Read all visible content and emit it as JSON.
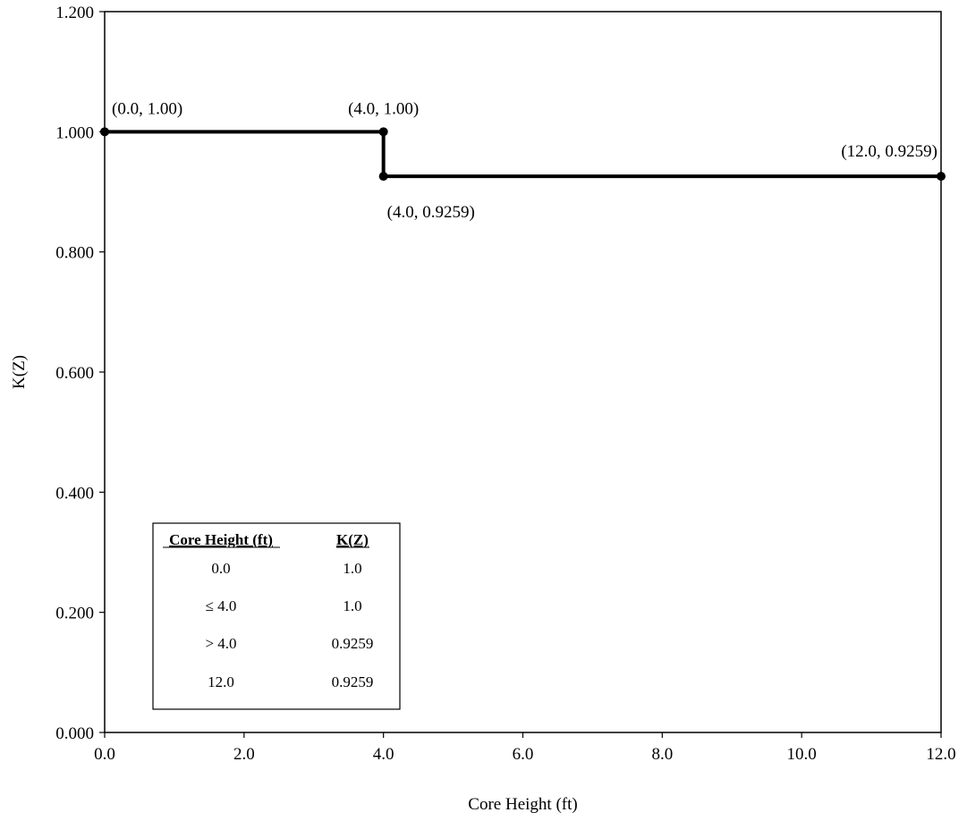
{
  "chart_data": {
    "type": "line",
    "title": "",
    "xlabel": "Core Height (ft)",
    "ylabel": "K(Z)",
    "xlim": [
      0,
      12
    ],
    "ylim": [
      0,
      1.2
    ],
    "grid": false,
    "x_ticks": [
      "0.0",
      "2.0",
      "4.0",
      "6.0",
      "8.0",
      "10.0",
      "12.0"
    ],
    "y_ticks": [
      "0.000",
      "0.200",
      "0.400",
      "0.600",
      "0.800",
      "1.000",
      "1.200"
    ],
    "series": [
      {
        "color": "#000000",
        "points": [
          {
            "x": 0.0,
            "y": 1.0,
            "label": "(0.0, 1.00)"
          },
          {
            "x": 4.0,
            "y": 1.0,
            "label": "(4.0, 1.00)"
          },
          {
            "x": 4.0,
            "y": 0.9259,
            "label": "(4.0, 0.9259)"
          },
          {
            "x": 12.0,
            "y": 0.9259,
            "label": "(12.0, 0.9259)"
          }
        ]
      }
    ],
    "inset_table": {
      "headers": [
        "Core Height (ft)",
        "K(Z)"
      ],
      "rows": [
        [
          "0.0",
          "1.0"
        ],
        [
          "≤ 4.0",
          "1.0"
        ],
        [
          "> 4.0",
          "0.9259"
        ],
        [
          "12.0",
          "0.9259"
        ]
      ]
    }
  }
}
